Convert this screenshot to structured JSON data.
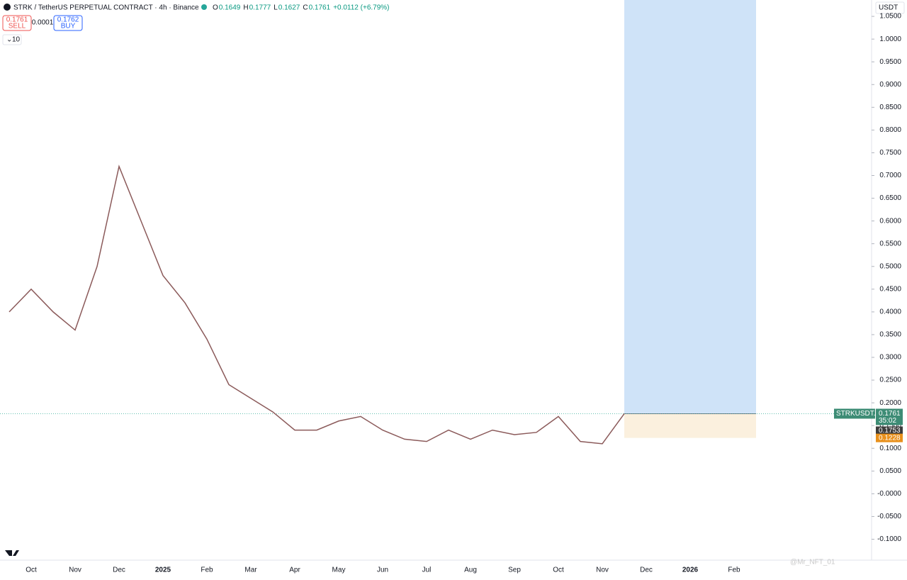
{
  "chart_data": {
    "type": "line",
    "header": {
      "symbol": "STRK / TetherUS PERPETUAL CONTRACT · 4h · Binance",
      "ohlc": [
        {
          "label": "O",
          "value": "0.1649"
        },
        {
          "label": "H",
          "value": "0.1777"
        },
        {
          "label": "L",
          "value": "0.1627"
        },
        {
          "label": "C",
          "value": "0.1761"
        }
      ],
      "change": "+0.0112 (+6.79%)",
      "sell": {
        "price": "0.1761",
        "label": "SELL"
      },
      "spread": "0.0001",
      "buy": {
        "price": "0.1762",
        "label": "BUY"
      },
      "indicators": "10",
      "currency": "USDT"
    },
    "categories": [
      null,
      "Oct",
      null,
      "Nov",
      null,
      "Dec",
      null,
      "2025",
      null,
      "Feb",
      null,
      "Mar",
      null,
      "Apr",
      null,
      "May",
      null,
      "Jun",
      null,
      "Jul",
      null,
      "Aug",
      null,
      "Sep",
      null,
      "Oct",
      null,
      "Nov",
      null,
      "Dec",
      null,
      "2026",
      null,
      "Feb"
    ],
    "series": [
      {
        "name": "STRKUSDT.P",
        "color": "#8b5a5a",
        "values": [
          0.4,
          0.45,
          0.4,
          0.36,
          0.5,
          0.72,
          0.6,
          0.48,
          0.42,
          0.34,
          0.24,
          0.21,
          0.18,
          0.14,
          0.14,
          0.16,
          0.17,
          0.14,
          0.12,
          0.115,
          0.14,
          0.12,
          0.14,
          0.13,
          0.135,
          0.17,
          0.115,
          0.11,
          0.1761,
          null,
          null,
          null,
          null,
          null
        ]
      }
    ],
    "last_price": 0.1761,
    "countdown": "35:02",
    "mark_price": 0.1753,
    "stop_price": 0.1228,
    "ylim": [
      -0.146,
      1.086
    ],
    "yticks": [
      {
        "value": -0.1,
        "label": "-0.1000"
      },
      {
        "value": -0.05,
        "label": "-0.0500"
      },
      {
        "value": 0,
        "label": "-0.0000"
      },
      {
        "value": 0.05,
        "label": "0.0500"
      },
      {
        "value": 0.1,
        "label": "0.1000"
      },
      {
        "value": 0.15,
        "label": "0.1500"
      },
      {
        "value": 0.2,
        "label": "0.2000"
      },
      {
        "value": 0.25,
        "label": "0.2500"
      },
      {
        "value": 0.3,
        "label": "0.3000"
      },
      {
        "value": 0.35,
        "label": "0.3500"
      },
      {
        "value": 0.4,
        "label": "0.4000"
      },
      {
        "value": 0.45,
        "label": "0.4500"
      },
      {
        "value": 0.5,
        "label": "0.5000"
      },
      {
        "value": 0.55,
        "label": "0.5500"
      },
      {
        "value": 0.6,
        "label": "0.6000"
      },
      {
        "value": 0.65,
        "label": "0.6500"
      },
      {
        "value": 0.7,
        "label": "0.7000"
      },
      {
        "value": 0.75,
        "label": "0.7500"
      },
      {
        "value": 0.8,
        "label": "0.8000"
      },
      {
        "value": 0.85,
        "label": "0.8500"
      },
      {
        "value": 0.9,
        "label": "0.9000"
      },
      {
        "value": 0.95,
        "label": "0.9500"
      },
      {
        "value": 1,
        "label": "1.0000"
      },
      {
        "value": 1.05,
        "label": "1.0500"
      }
    ],
    "watermark": "@Mr_NFT_01"
  }
}
